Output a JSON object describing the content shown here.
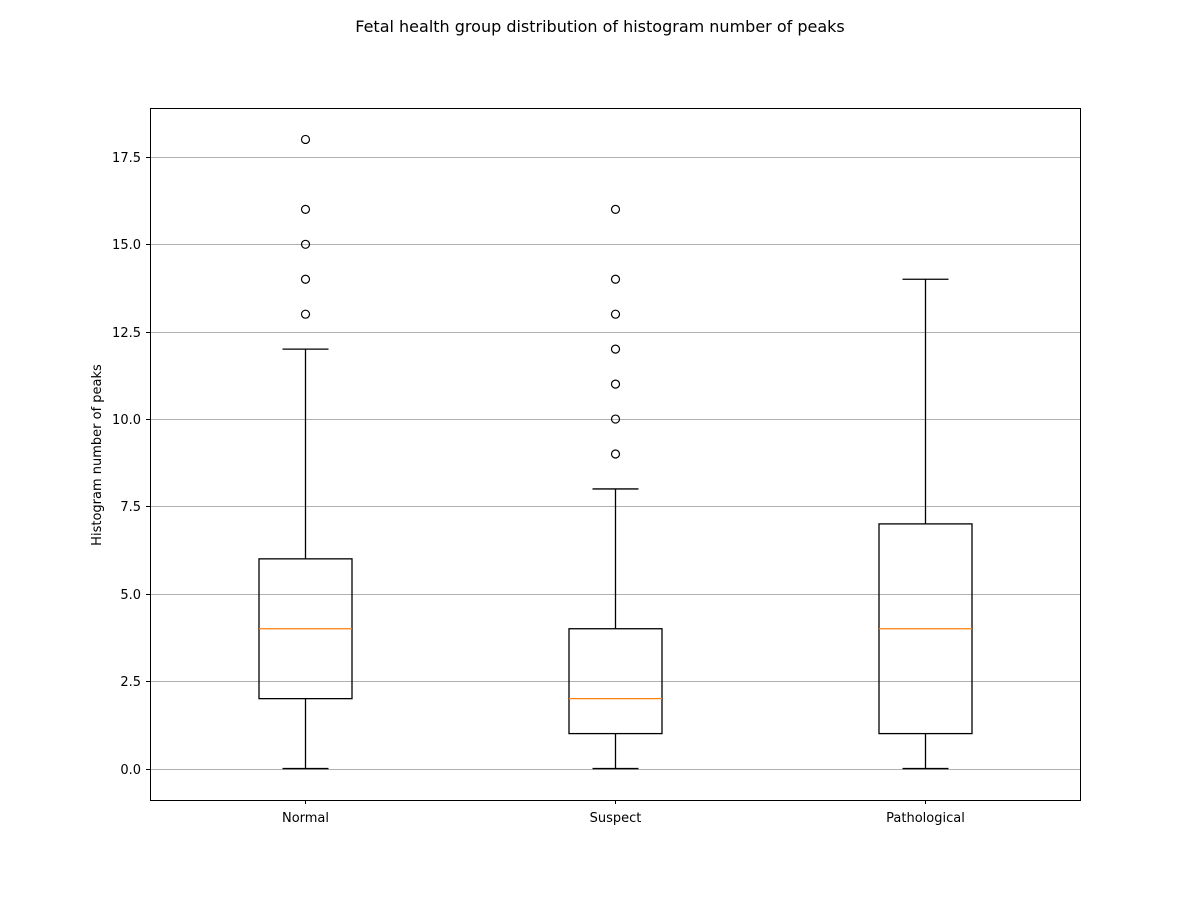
{
  "chart_data": {
    "type": "boxplot",
    "title": "Fetal health group distribution of histogram number of peaks",
    "xlabel": "",
    "ylabel": "Histogram number of peaks",
    "categories": [
      "Normal",
      "Suspect",
      "Pathological"
    ],
    "ylim": [
      -0.9,
      18.9
    ],
    "yticks": [
      "0.0",
      "2.5",
      "5.0",
      "7.5",
      "10.0",
      "12.5",
      "15.0",
      "17.5"
    ],
    "grid": "horizontal",
    "boxes": [
      {
        "category": "Normal",
        "whisker_low": 0,
        "q1": 2,
        "median": 4,
        "q3": 6,
        "whisker_high": 12,
        "outliers": [
          13,
          14,
          15,
          16,
          18
        ]
      },
      {
        "category": "Suspect",
        "whisker_low": 0,
        "q1": 1,
        "median": 2,
        "q3": 4,
        "whisker_high": 8,
        "outliers": [
          9,
          10,
          11,
          12,
          13,
          14,
          16
        ]
      },
      {
        "category": "Pathological",
        "whisker_low": 0,
        "q1": 1,
        "median": 4,
        "q3": 7,
        "whisker_high": 14,
        "outliers": []
      }
    ],
    "colors": {
      "box": "#000000",
      "median": "#ff7f0e",
      "grid": "#b0b0b0"
    }
  }
}
